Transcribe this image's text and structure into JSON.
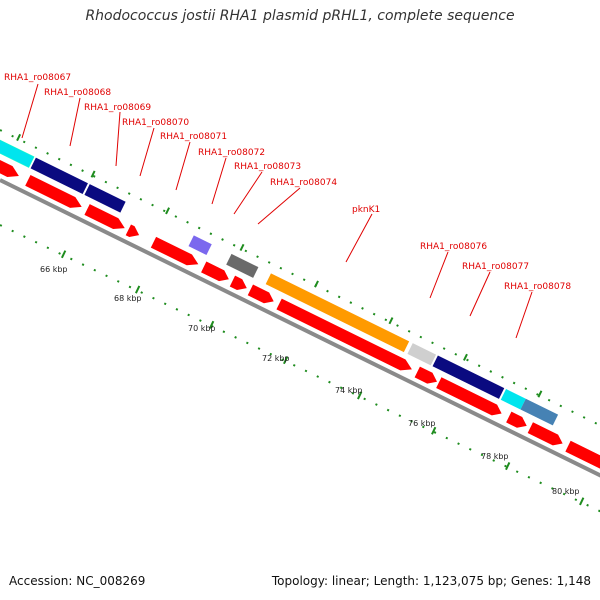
{
  "title": "Rhodococcus jostii RHA1 plasmid pRHL1, complete sequence",
  "footer": {
    "accession": "Accession: NC_008269",
    "topology": "Topology: linear; Length: 1,123,075 bp; Genes: 1,148"
  },
  "colors": {
    "backbone": "#8a8a8a",
    "label": "#e00000",
    "forward_strand": "#ff0000",
    "tick": "#1e8c1e"
  },
  "labels": [
    "RHA1_ro08067",
    "RHA1_ro08068",
    "RHA1_ro08069",
    "RHA1_ro08070",
    "RHA1_ro08071",
    "RHA1_ro08072",
    "RHA1_ro08073",
    "RHA1_ro08074",
    "pknK1",
    "RHA1_ro08076",
    "RHA1_ro08077",
    "RHA1_ro08078"
  ],
  "scale": [
    "66 kbp",
    "68 kbp",
    "70 kbp",
    "72 kbp",
    "74 kbp",
    "76 kbp",
    "78 kbp",
    "80 kbp"
  ]
}
